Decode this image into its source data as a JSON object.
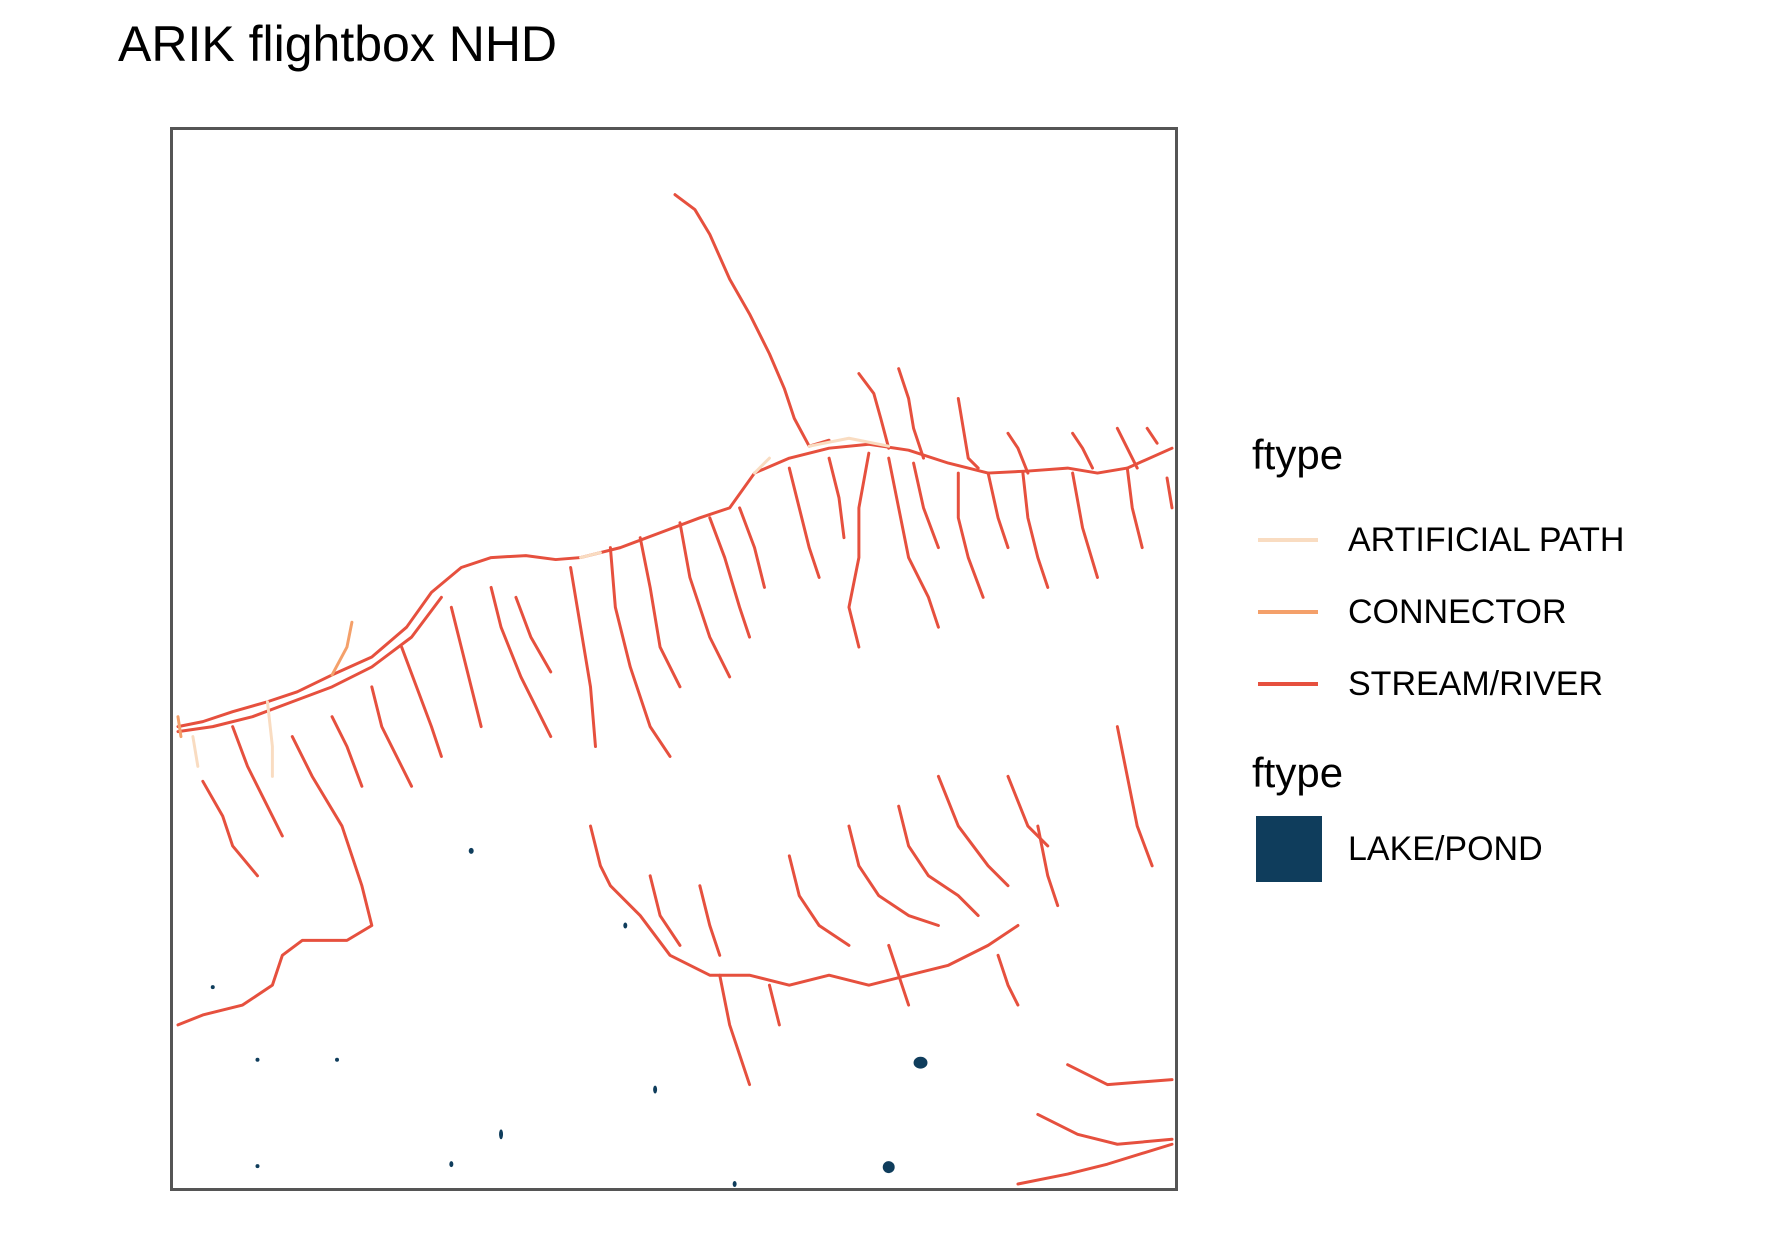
{
  "title": "ARIK flightbox NHD",
  "legend_lines": {
    "title": "ftype",
    "items": [
      {
        "label": "ARTIFICIAL PATH",
        "color": "#F9DCC1"
      },
      {
        "label": "CONNECTOR",
        "color": "#F4A06A"
      },
      {
        "label": "STREAM/RIVER",
        "color": "#E6503E"
      }
    ]
  },
  "legend_fill": {
    "title": "ftype",
    "items": [
      {
        "label": "LAKE/POND",
        "color": "#0F3D5C"
      }
    ]
  }
}
